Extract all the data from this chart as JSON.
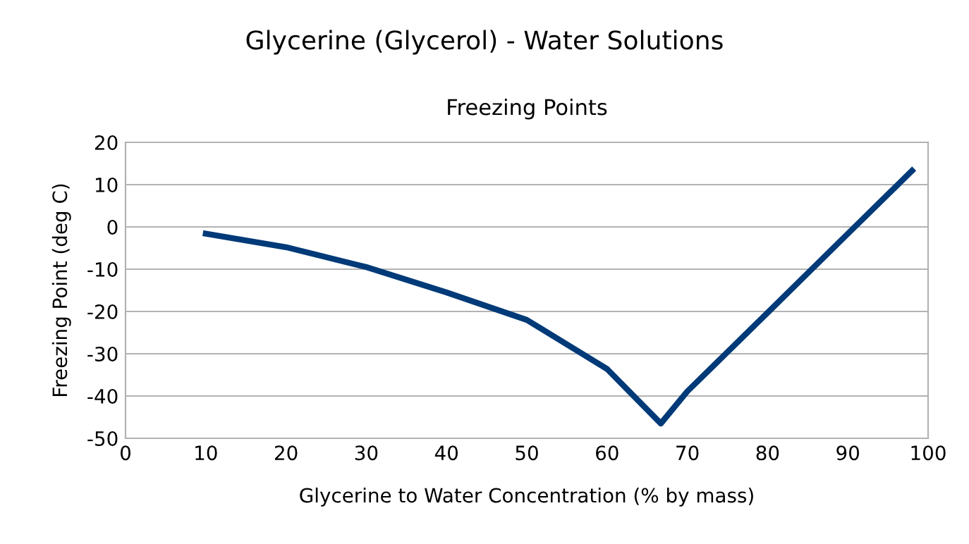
{
  "chart_data": {
    "type": "line",
    "title": "Glycerine (Glycerol) - Water Solutions",
    "subtitle": "Freezing Points",
    "xlabel": "Glycerine to Water Concentration (% by mass)",
    "ylabel": "Freezing Point (deg C)",
    "x": [
      10,
      20,
      30,
      40,
      50,
      60,
      66.7,
      70,
      80,
      90,
      95,
      98
    ],
    "series": [
      {
        "color": "#003a78",
        "values": [
          -1.6,
          -4.8,
          -9.5,
          -15.5,
          -22.0,
          -33.6,
          -46.5,
          -38.9,
          -20.3,
          -1.6,
          7.7,
          13.3
        ]
      }
    ],
    "xlim": [
      0,
      100
    ],
    "xticks": [
      0,
      10,
      20,
      30,
      40,
      50,
      60,
      70,
      80,
      90,
      100
    ],
    "ylim": [
      -50,
      20
    ],
    "yticks": [
      -50,
      -40,
      -30,
      -20,
      -10,
      0,
      10,
      20
    ],
    "grid": "y",
    "legend": false,
    "marker": "none",
    "line_style": "solid"
  }
}
